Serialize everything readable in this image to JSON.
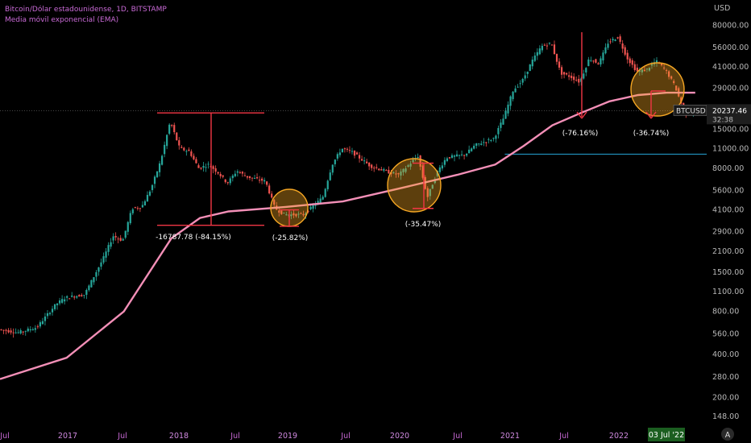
{
  "header": {
    "symbol_line": "Bitcoin/Dólar estadounidense, 1D, BITSTAMP",
    "indicator_line": "Media móvil exponencial (EMA)"
  },
  "colors": {
    "background": "#000000",
    "ema": "#f38fb7",
    "bullish": "#26a69a",
    "bearish": "#ef5350",
    "annotation": "#f23645",
    "circle": "#f5a623",
    "support_line": "#26a6d8",
    "header_text": "#c96ad6"
  },
  "price_tag": {
    "symbol": "BTCUSD",
    "price": "20237.46",
    "countdown": "32:38"
  },
  "date_tag": "03 Jul '22",
  "corner_button": "A",
  "annotations": {
    "drop_2018": "-16787.78 (-84.15%)",
    "drop_2019": "(-25.82%)",
    "drop_2020": "(-35.47%)",
    "drop_2021": "(-76.16%)",
    "drop_2022": "(-36.74%)"
  },
  "chart_data": {
    "type": "candlestick",
    "scale": "log",
    "y_axis_label": "USD",
    "y_ticks": [
      80000,
      56000,
      41000,
      29000,
      20000,
      15000,
      11000,
      8000,
      5600,
      4100,
      2900,
      2100,
      1500,
      1100,
      800,
      560,
      400,
      280,
      200,
      148
    ],
    "y_tick_labels": [
      "80000.00",
      "56000.00",
      "41000.00",
      "29000.00",
      "20000.00",
      "15000.00",
      "11000.00",
      "8000.00",
      "5600.00",
      "4100.00",
      "2900.00",
      "2100.00",
      "1500.00",
      "1100.00",
      "800.00",
      "560.00",
      "400.00",
      "280.00",
      "200.00",
      "148.00"
    ],
    "x_ticks": [
      "Jul",
      "2017",
      "Jul",
      "2018",
      "Jul",
      "2019",
      "Jul",
      "2020",
      "Jul",
      "2021",
      "Jul",
      "2022"
    ],
    "x_tick_years": [
      false,
      true,
      false,
      true,
      false,
      true,
      false,
      true,
      false,
      true,
      false,
      true
    ],
    "x_range": [
      "2016-07",
      "2022-07"
    ],
    "ylim": [
      130,
      95000
    ],
    "price_path": [
      [
        "2016-06",
        600
      ],
      [
        "2016-08",
        570
      ],
      [
        "2016-10",
        620
      ],
      [
        "2016-12",
        900
      ],
      [
        "2017-01",
        1000
      ],
      [
        "2017-03",
        1050
      ],
      [
        "2017-05",
        1900
      ],
      [
        "2017-06",
        2700
      ],
      [
        "2017-07",
        2500
      ],
      [
        "2017-08",
        4200
      ],
      [
        "2017-09",
        4300
      ],
      [
        "2017-10",
        5800
      ],
      [
        "2017-11",
        9000
      ],
      [
        "2017-12",
        17000
      ],
      [
        "2018-01",
        11000
      ],
      [
        "2018-02",
        10500
      ],
      [
        "2018-03",
        8000
      ],
      [
        "2018-04",
        8500
      ],
      [
        "2018-05",
        7500
      ],
      [
        "2018-06",
        6300
      ],
      [
        "2018-07",
        7700
      ],
      [
        "2018-08",
        7000
      ],
      [
        "2018-10",
        6500
      ],
      [
        "2018-11",
        4200
      ],
      [
        "2018-12",
        3800
      ],
      [
        "2019-02",
        3800
      ],
      [
        "2019-04",
        5000
      ],
      [
        "2019-05",
        8500
      ],
      [
        "2019-06",
        11000
      ],
      [
        "2019-07",
        10500
      ],
      [
        "2019-09",
        8300
      ],
      [
        "2019-11",
        7500
      ],
      [
        "2019-12",
        7200
      ],
      [
        "2020-02",
        9800
      ],
      [
        "2020-03",
        5000
      ],
      [
        "2020-04",
        7500
      ],
      [
        "2020-05",
        9500
      ],
      [
        "2020-07",
        10000
      ],
      [
        "2020-08",
        11600
      ],
      [
        "2020-10",
        13000
      ],
      [
        "2020-11",
        18000
      ],
      [
        "2020-12",
        28000
      ],
      [
        "2021-01",
        33000
      ],
      [
        "2021-02",
        45000
      ],
      [
        "2021-03",
        57000
      ],
      [
        "2021-04",
        60000
      ],
      [
        "2021-05",
        37000
      ],
      [
        "2021-06",
        35000
      ],
      [
        "2021-07",
        32000
      ],
      [
        "2021-08",
        47000
      ],
      [
        "2021-09",
        43000
      ],
      [
        "2021-10",
        61000
      ],
      [
        "2021-11",
        66000
      ],
      [
        "2021-12",
        47000
      ],
      [
        "2022-01",
        38000
      ],
      [
        "2022-02",
        39000
      ],
      [
        "2022-03",
        45000
      ],
      [
        "2022-04",
        39000
      ],
      [
        "2022-05",
        30000
      ],
      [
        "2022-06",
        19500
      ],
      [
        "2022-07",
        20237
      ]
    ],
    "ema_path": [
      [
        "2016-06",
        270
      ],
      [
        "2017-01",
        380
      ],
      [
        "2017-07",
        800
      ],
      [
        "2017-12",
        2600
      ],
      [
        "2018-03",
        3600
      ],
      [
        "2018-06",
        4000
      ],
      [
        "2018-12",
        4300
      ],
      [
        "2019-06",
        4700
      ],
      [
        "2019-12",
        5800
      ],
      [
        "2020-06",
        7200
      ],
      [
        "2020-10",
        8500
      ],
      [
        "2021-01",
        11500
      ],
      [
        "2021-04",
        16000
      ],
      [
        "2021-07",
        19500
      ],
      [
        "2021-10",
        23500
      ],
      [
        "2022-01",
        26000
      ],
      [
        "2022-04",
        27000
      ],
      [
        "2022-07",
        27000
      ]
    ],
    "support_level": 11000
  }
}
